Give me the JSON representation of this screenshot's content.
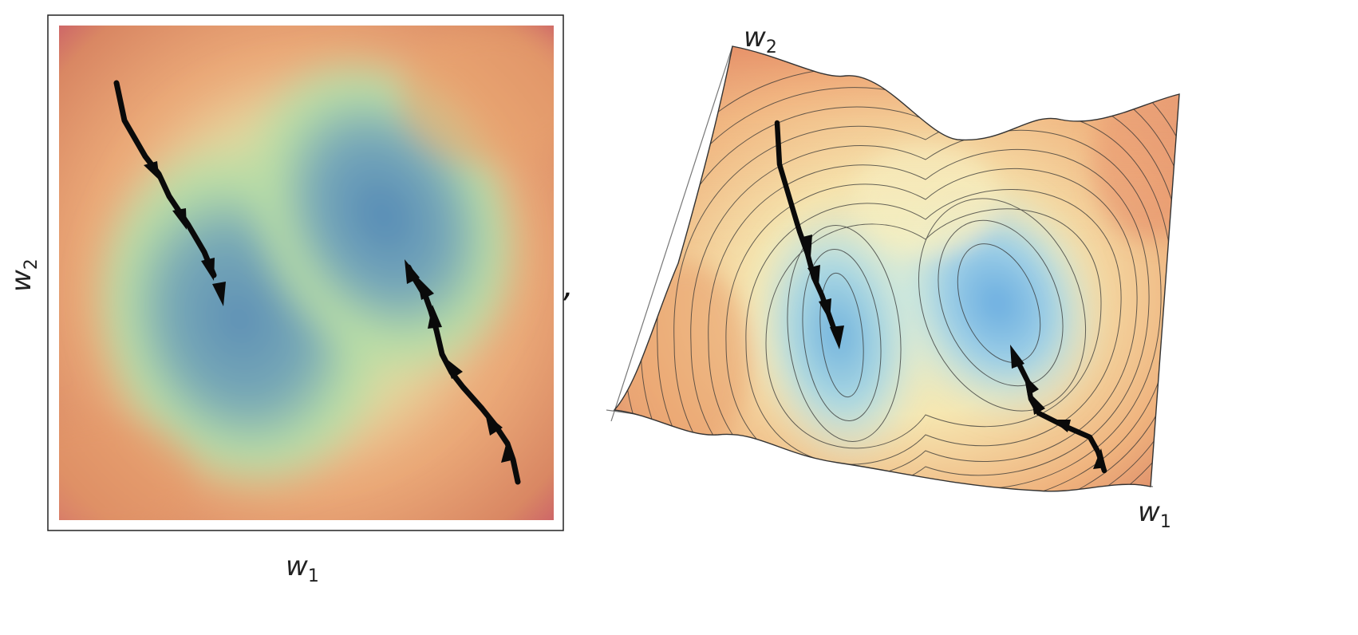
{
  "left_panel": {
    "x_label": {
      "main": "w",
      "sub": "1"
    },
    "y_label": {
      "main": "w",
      "sub": "2"
    }
  },
  "separator": {
    "text": ","
  },
  "right_panel": {
    "x_label": {
      "main": "w",
      "sub": "1"
    },
    "y_label": {
      "main": "w",
      "sub": "2"
    }
  },
  "colors": {
    "basin": "#5a8fb8",
    "mid": "#b9dca3",
    "high": "#e8a070",
    "edge": "#c7536b",
    "arrow": "#0a0a0a"
  }
}
